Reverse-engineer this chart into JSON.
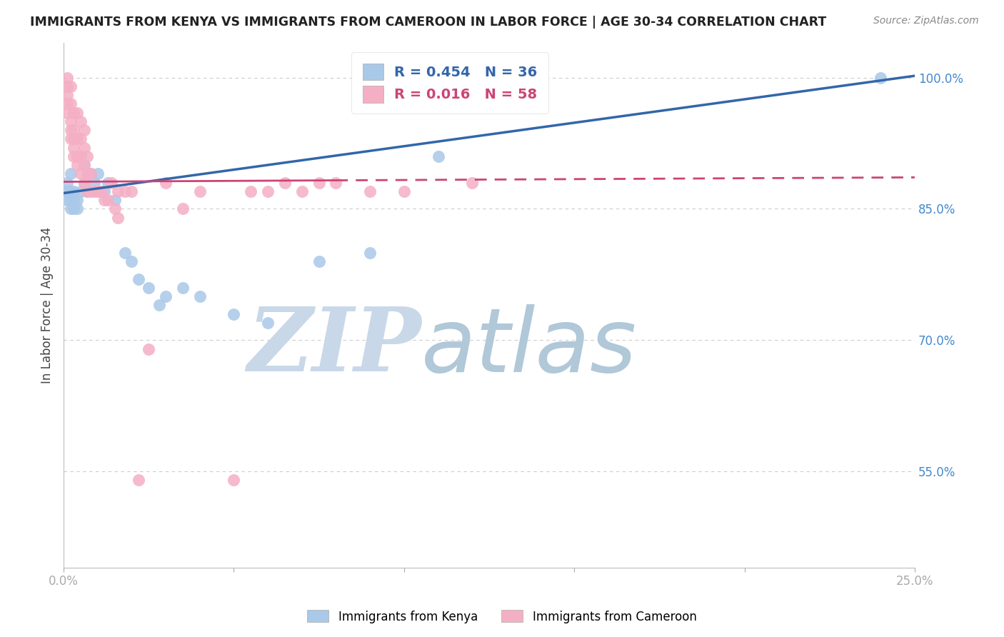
{
  "title": "IMMIGRANTS FROM KENYA VS IMMIGRANTS FROM CAMEROON IN LABOR FORCE | AGE 30-34 CORRELATION CHART",
  "source": "Source: ZipAtlas.com",
  "ylabel": "In Labor Force | Age 30-34",
  "x_min": 0.0,
  "x_max": 0.25,
  "y_min": 0.44,
  "y_max": 1.04,
  "x_ticks": [
    0.0,
    0.05,
    0.1,
    0.15,
    0.2,
    0.25
  ],
  "x_tick_labels": [
    "0.0%",
    "",
    "",
    "",
    "",
    "25.0%"
  ],
  "y_ticks": [
    0.55,
    0.7,
    0.85,
    1.0
  ],
  "y_tick_labels": [
    "55.0%",
    "70.0%",
    "85.0%",
    "100.0%"
  ],
  "kenya_color": "#aac8e8",
  "cameroon_color": "#f4afc5",
  "kenya_line_color": "#3366aa",
  "cameroon_line_color": "#cc4477",
  "legend_kenya_label": "R = 0.454   N = 36",
  "legend_cameroon_label": "R = 0.016   N = 58",
  "watermark_zip": "ZIP",
  "watermark_atlas": "atlas",
  "watermark_color_zip": "#c8d8e8",
  "watermark_color_atlas": "#b0c8d8",
  "background_color": "#ffffff",
  "grid_color": "#cccccc",
  "kenya_line_y0": 0.868,
  "kenya_line_y1": 1.002,
  "cameroon_line_y0": 0.881,
  "cameroon_line_y1": 0.886,
  "kenya_x": [
    0.001,
    0.001,
    0.001,
    0.002,
    0.002,
    0.002,
    0.002,
    0.003,
    0.003,
    0.003,
    0.004,
    0.004,
    0.005,
    0.006,
    0.006,
    0.007,
    0.008,
    0.009,
    0.01,
    0.012,
    0.013,
    0.015,
    0.018,
    0.02,
    0.022,
    0.025,
    0.028,
    0.03,
    0.035,
    0.04,
    0.05,
    0.06,
    0.075,
    0.09,
    0.11,
    0.24
  ],
  "kenya_y": [
    0.88,
    0.87,
    0.86,
    0.89,
    0.87,
    0.86,
    0.85,
    0.87,
    0.86,
    0.85,
    0.86,
    0.85,
    0.87,
    0.9,
    0.88,
    0.87,
    0.89,
    0.88,
    0.89,
    0.87,
    0.88,
    0.86,
    0.8,
    0.79,
    0.77,
    0.76,
    0.74,
    0.75,
    0.76,
    0.75,
    0.73,
    0.72,
    0.79,
    0.8,
    0.91,
    1.0
  ],
  "cameroon_x": [
    0.001,
    0.001,
    0.001,
    0.001,
    0.001,
    0.002,
    0.002,
    0.002,
    0.002,
    0.002,
    0.003,
    0.003,
    0.003,
    0.003,
    0.003,
    0.004,
    0.004,
    0.004,
    0.004,
    0.005,
    0.005,
    0.005,
    0.005,
    0.006,
    0.006,
    0.006,
    0.006,
    0.007,
    0.007,
    0.007,
    0.008,
    0.008,
    0.009,
    0.01,
    0.011,
    0.012,
    0.013,
    0.014,
    0.015,
    0.016,
    0.016,
    0.018,
    0.02,
    0.022,
    0.025,
    0.03,
    0.035,
    0.04,
    0.05,
    0.055,
    0.06,
    0.065,
    0.07,
    0.075,
    0.08,
    0.09,
    0.1,
    0.12
  ],
  "cameroon_y": [
    1.0,
    0.99,
    0.98,
    0.97,
    0.96,
    0.99,
    0.97,
    0.95,
    0.94,
    0.93,
    0.96,
    0.94,
    0.93,
    0.92,
    0.91,
    0.96,
    0.93,
    0.91,
    0.9,
    0.95,
    0.93,
    0.91,
    0.89,
    0.94,
    0.92,
    0.9,
    0.88,
    0.91,
    0.89,
    0.87,
    0.89,
    0.87,
    0.87,
    0.87,
    0.87,
    0.86,
    0.86,
    0.88,
    0.85,
    0.87,
    0.84,
    0.87,
    0.87,
    0.54,
    0.69,
    0.88,
    0.85,
    0.87,
    0.54,
    0.87,
    0.87,
    0.88,
    0.87,
    0.88,
    0.88,
    0.87,
    0.87,
    0.88
  ],
  "footnote_label_kenya": "Immigrants from Kenya",
  "footnote_label_cameroon": "Immigrants from Cameroon"
}
